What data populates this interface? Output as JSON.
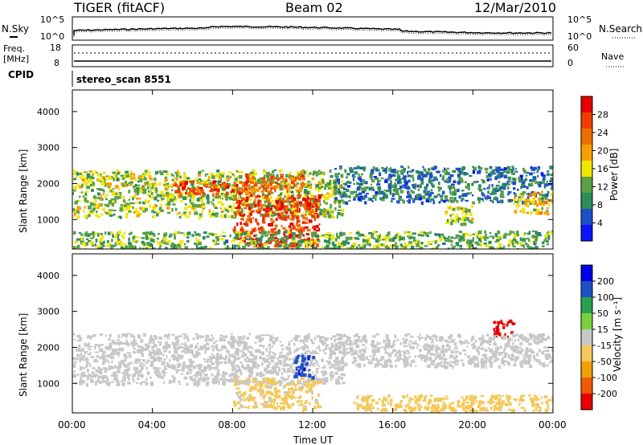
{
  "header": {
    "title": "TIGER (fitACF)",
    "beam": "Beam 02",
    "date": "12/Mar/2010"
  },
  "summary": {
    "nsky_label": "N.Sky",
    "nsky_ticks": [
      "10^5",
      "10^0"
    ],
    "nsearch_label": "N.Search",
    "nsearch_ticks": [
      "10^5",
      "10^0"
    ],
    "freq_label": "Freq.",
    "freq_unit": "[MHz]",
    "freq_ticks": [
      "18",
      "8"
    ],
    "nave_label": "Nave",
    "nave_ticks": [
      "60",
      "0"
    ],
    "cpid_label": "CPID",
    "cpid_text": "stereo_scan 8551"
  },
  "colors": {
    "power_scale": [
      "#0a14ff",
      "#1e50c8",
      "#2d8c5a",
      "#5aa046",
      "#f0e600",
      "#f5a000",
      "#f06e00",
      "#f03c00",
      "#e60000"
    ],
    "velocity_scale": [
      "#0000e6",
      "#1e50c8",
      "#28a050",
      "#78d23c",
      "#c8c8c8",
      "#f5c85a",
      "#f0a000",
      "#f05a00",
      "#e60000"
    ]
  },
  "chart_data": [
    {
      "type": "heatmap",
      "name": "power",
      "ylabel": "Slant Range [km]",
      "yticks": [
        "4000",
        "3000",
        "2000",
        "1000"
      ],
      "ylim": [
        180,
        4600
      ],
      "xlim_hours": [
        0,
        24
      ],
      "colorbar_label": "Power [dB]",
      "colorbar_ticks": [
        "28",
        "24",
        "20",
        "16",
        "12",
        "8",
        "4"
      ],
      "clim": [
        0,
        32
      ],
      "features": [
        {
          "t0": 0,
          "t1": 13.5,
          "r0": 1100,
          "r1": 2400,
          "level": 14
        },
        {
          "t0": 5,
          "t1": 9,
          "r0": 1700,
          "r1": 2100,
          "level": 26
        },
        {
          "t0": 8,
          "t1": 12.3,
          "r0": 300,
          "r1": 1700,
          "level": 27
        },
        {
          "t0": 8.5,
          "t1": 11.5,
          "r0": 1800,
          "r1": 2300,
          "level": 24
        },
        {
          "t0": 13,
          "t1": 24,
          "r0": 1500,
          "r1": 2500,
          "level": 8
        },
        {
          "t0": 18.5,
          "t1": 20,
          "r0": 900,
          "r1": 1400,
          "level": 14
        },
        {
          "t0": 22,
          "t1": 24,
          "r0": 1200,
          "r1": 1800,
          "level": 18
        },
        {
          "t0": 0,
          "t1": 24,
          "r0": 180,
          "r1": 700,
          "level": 12
        }
      ]
    },
    {
      "type": "heatmap",
      "name": "velocity",
      "ylabel": "Slant Range [km]",
      "yticks": [
        "4000",
        "3000",
        "2000",
        "1000"
      ],
      "ylim": [
        180,
        4600
      ],
      "xlim_hours": [
        0,
        24
      ],
      "xticks": [
        "00:00",
        "04:00",
        "08:00",
        "12:00",
        "16:00",
        "20:00",
        "00:00"
      ],
      "xlabel": "Time UT",
      "colorbar_label": "Velocity [m s⁻¹]",
      "colorbar_ticks": [
        "200",
        "100",
        "50",
        "15",
        "-15",
        "-50",
        "-100",
        "-200"
      ],
      "clim": [
        -250,
        250
      ],
      "features": [
        {
          "t0": 0,
          "t1": 13.5,
          "r0": 1000,
          "r1": 2400,
          "v": 0
        },
        {
          "t0": 8,
          "t1": 12.3,
          "r0": 300,
          "r1": 1200,
          "v": -40
        },
        {
          "t0": 11,
          "t1": 12,
          "r0": 1200,
          "r1": 1800,
          "v": 180
        },
        {
          "t0": 21,
          "t1": 22,
          "r0": 2300,
          "r1": 2800,
          "v": -220
        },
        {
          "t0": 13,
          "t1": 24,
          "r0": 1500,
          "r1": 2400,
          "v": 0
        },
        {
          "t0": 14,
          "t1": 24,
          "r0": 250,
          "r1": 700,
          "v": -50
        }
      ]
    }
  ]
}
